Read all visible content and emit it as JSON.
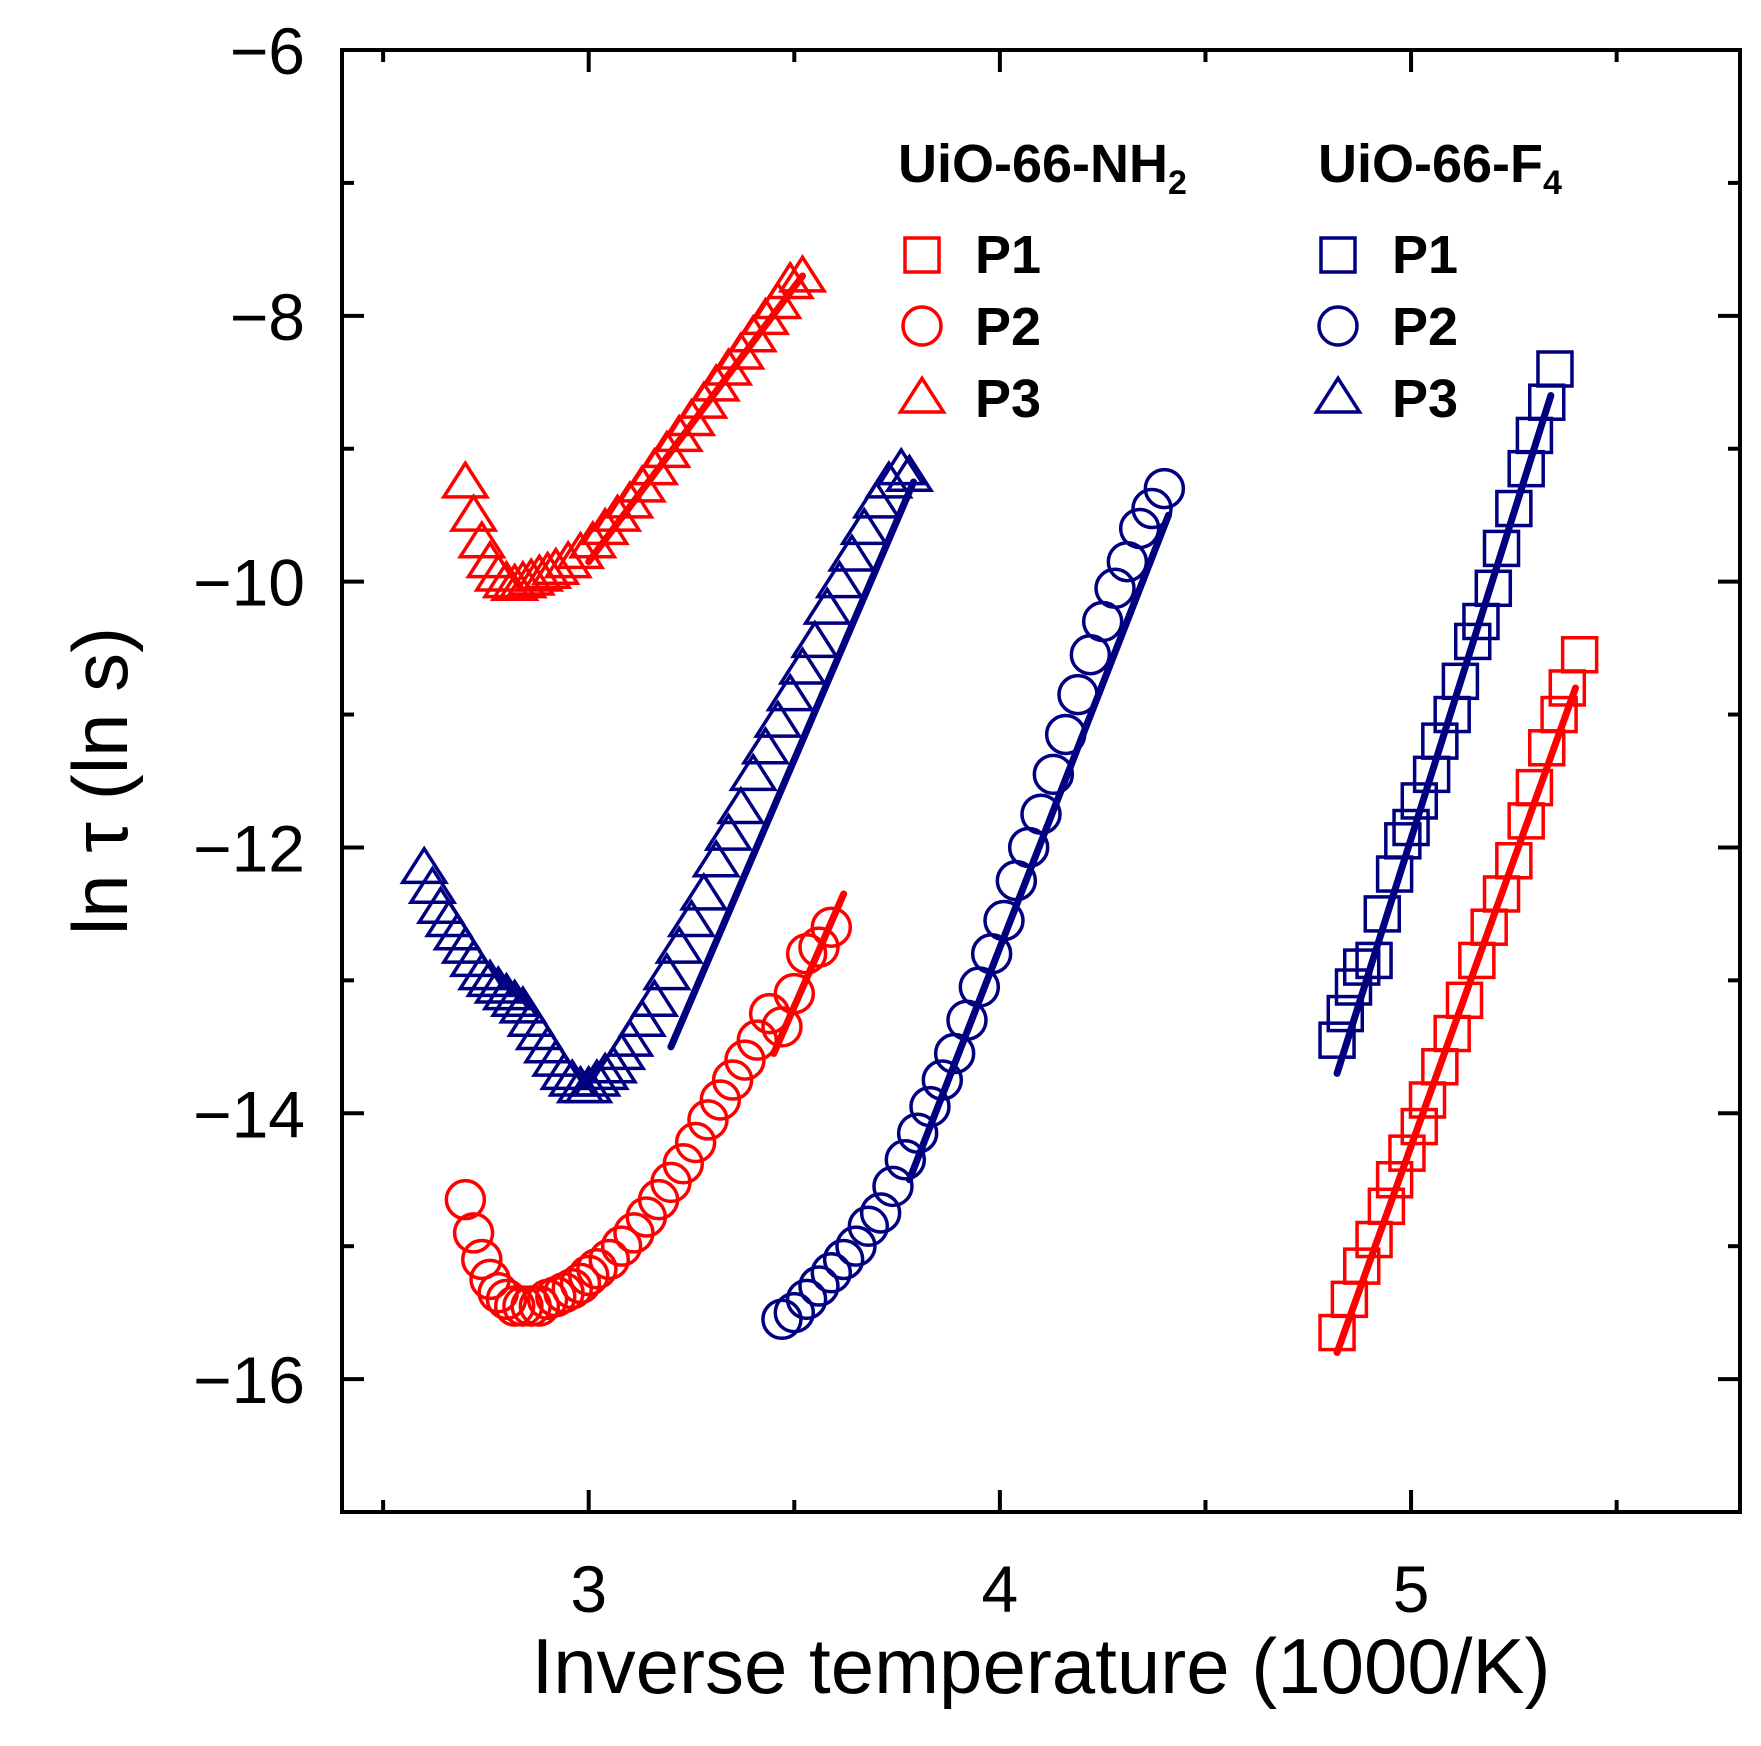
{
  "chart_data": {
    "type": "scatter",
    "title": "",
    "xlabel": "Inverse temperature (1000/K)",
    "ylabel": "ln τ (ln s)",
    "xlim": [
      2.4,
      5.8
    ],
    "ylim": [
      -17,
      -6
    ],
    "x_major_ticks": [
      3,
      4,
      5
    ],
    "x_minor_ticks": [
      2.5,
      3.5,
      4.5,
      5.5
    ],
    "y_major_ticks": [
      -6,
      -8,
      -10,
      -12,
      -14,
      -16
    ],
    "y_minor_ticks": [
      -7,
      -9,
      -11,
      -13,
      -15,
      -17
    ],
    "x_tick_labels": [
      "3",
      "4",
      "5"
    ],
    "y_tick_labels": [
      "−6",
      "−8",
      "−10",
      "−12",
      "−14",
      "−16"
    ],
    "legend": {
      "groups": [
        {
          "name": "UiO-66-NH",
          "subscript": "2",
          "color": "#ff0000",
          "entries": [
            "P1",
            "P2",
            "P3"
          ]
        },
        {
          "name": "UiO-66-F",
          "subscript": "4",
          "color": "#000080",
          "entries": [
            "P1",
            "P2",
            "P3"
          ]
        }
      ]
    },
    "series": [
      {
        "name": "UiO-66-NH2 P1",
        "color": "#ff0000",
        "marker": "square",
        "x": [
          4.82,
          4.85,
          4.88,
          4.91,
          4.94,
          4.96,
          4.99,
          5.02,
          5.04,
          5.07,
          5.1,
          5.13,
          5.16,
          5.19,
          5.22,
          5.25,
          5.28,
          5.3,
          5.33,
          5.36,
          5.38,
          5.41
        ],
        "y": [
          -15.65,
          -15.4,
          -15.15,
          -14.95,
          -14.7,
          -14.5,
          -14.3,
          -14.1,
          -13.9,
          -13.65,
          -13.4,
          -13.15,
          -12.85,
          -12.6,
          -12.35,
          -12.1,
          -11.8,
          -11.55,
          -11.25,
          -11.0,
          -10.8,
          -10.55
        ],
        "fit": {
          "x": [
            4.82,
            5.4
          ],
          "y": [
            -15.8,
            -10.8
          ]
        }
      },
      {
        "name": "UiO-66-NH2 P2",
        "color": "#ff0000",
        "marker": "circle",
        "x": [
          2.7,
          2.72,
          2.74,
          2.76,
          2.78,
          2.8,
          2.82,
          2.84,
          2.86,
          2.88,
          2.9,
          2.92,
          2.94,
          2.96,
          2.98,
          3.0,
          3.02,
          3.05,
          3.08,
          3.11,
          3.14,
          3.17,
          3.2,
          3.23,
          3.26,
          3.29,
          3.32,
          3.35,
          3.38,
          3.41,
          3.44,
          3.47,
          3.5,
          3.53,
          3.56,
          3.59
        ],
        "y": [
          -14.65,
          -14.9,
          -15.1,
          -15.25,
          -15.35,
          -15.4,
          -15.45,
          -15.45,
          -15.45,
          -15.45,
          -15.4,
          -15.38,
          -15.35,
          -15.32,
          -15.28,
          -15.22,
          -15.17,
          -15.1,
          -15.0,
          -14.9,
          -14.78,
          -14.65,
          -14.52,
          -14.38,
          -14.22,
          -14.05,
          -13.9,
          -13.75,
          -13.6,
          -13.45,
          -13.25,
          -13.35,
          -13.1,
          -12.8,
          -12.75,
          -12.6
        ],
        "fit": {
          "x": [
            3.45,
            3.62
          ],
          "y": [
            -13.55,
            -12.35
          ]
        }
      },
      {
        "name": "UiO-66-NH2 P3",
        "color": "#ff0000",
        "marker": "triangle",
        "x": [
          2.7,
          2.72,
          2.74,
          2.76,
          2.78,
          2.8,
          2.82,
          2.84,
          2.86,
          2.88,
          2.9,
          2.92,
          2.95,
          2.98,
          3.01,
          3.04,
          3.07,
          3.1,
          3.13,
          3.16,
          3.19,
          3.22,
          3.25,
          3.28,
          3.31,
          3.34,
          3.37,
          3.4,
          3.43,
          3.46,
          3.49,
          3.52
        ],
        "y": [
          -9.25,
          -9.5,
          -9.7,
          -9.85,
          -9.95,
          -10.0,
          -10.02,
          -10.0,
          -9.98,
          -9.95,
          -9.93,
          -9.9,
          -9.85,
          -9.78,
          -9.7,
          -9.6,
          -9.5,
          -9.4,
          -9.28,
          -9.15,
          -9.02,
          -8.9,
          -8.78,
          -8.65,
          -8.52,
          -8.4,
          -8.28,
          -8.15,
          -8.02,
          -7.9,
          -7.75,
          -7.7
        ],
        "fit": {
          "x": [
            3.0,
            3.52
          ],
          "y": [
            -9.85,
            -7.7
          ]
        }
      },
      {
        "name": "UiO-66-F4 P1",
        "color": "#000080",
        "marker": "square",
        "x": [
          4.82,
          4.84,
          4.86,
          4.88,
          4.91,
          4.93,
          4.96,
          4.98,
          5.0,
          5.02,
          5.05,
          5.07,
          5.1,
          5.12,
          5.15,
          5.17,
          5.2,
          5.22,
          5.25,
          5.28,
          5.3,
          5.33,
          5.35
        ],
        "y": [
          -13.45,
          -13.25,
          -13.05,
          -12.9,
          -12.85,
          -12.5,
          -12.2,
          -11.95,
          -11.85,
          -11.65,
          -11.45,
          -11.2,
          -11.0,
          -10.75,
          -10.45,
          -10.3,
          -10.05,
          -9.75,
          -9.45,
          -9.15,
          -8.9,
          -8.65,
          -8.4
        ],
        "fit": {
          "x": [
            4.82,
            5.34
          ],
          "y": [
            -13.7,
            -8.6
          ]
        }
      },
      {
        "name": "UiO-66-F4 P2",
        "color": "#000080",
        "marker": "circle",
        "x": [
          3.47,
          3.5,
          3.53,
          3.56,
          3.59,
          3.62,
          3.65,
          3.68,
          3.71,
          3.74,
          3.77,
          3.8,
          3.83,
          3.86,
          3.89,
          3.92,
          3.95,
          3.98,
          4.01,
          4.04,
          4.07,
          4.1,
          4.13,
          4.16,
          4.19,
          4.22,
          4.25,
          4.28,
          4.31,
          4.34,
          4.37,
          4.4
        ],
        "y": [
          -15.55,
          -15.5,
          -15.4,
          -15.3,
          -15.2,
          -15.1,
          -15.0,
          -14.85,
          -14.75,
          -14.55,
          -14.35,
          -14.15,
          -13.95,
          -13.75,
          -13.55,
          -13.3,
          -13.05,
          -12.8,
          -12.55,
          -12.25,
          -12.0,
          -11.75,
          -11.45,
          -11.15,
          -10.85,
          -10.55,
          -10.3,
          -10.05,
          -9.85,
          -9.6,
          -9.45,
          -9.3
        ],
        "fit": {
          "x": [
            3.78,
            4.41
          ],
          "y": [
            -14.5,
            -9.5
          ]
        }
      },
      {
        "name": "UiO-66-F4 P3",
        "color": "#000080",
        "marker": "triangle",
        "x": [
          2.6,
          2.62,
          2.64,
          2.66,
          2.68,
          2.7,
          2.72,
          2.74,
          2.76,
          2.78,
          2.8,
          2.82,
          2.84,
          2.86,
          2.88,
          2.9,
          2.92,
          2.94,
          2.96,
          2.98,
          3.0,
          3.02,
          3.04,
          3.06,
          3.08,
          3.1,
          3.13,
          3.16,
          3.19,
          3.22,
          3.25,
          3.28,
          3.31,
          3.34,
          3.37,
          3.4,
          3.43,
          3.46,
          3.49,
          3.52,
          3.55,
          3.58,
          3.61,
          3.64,
          3.67,
          3.7,
          3.73,
          3.76,
          3.78
        ],
        "y": [
          -12.15,
          -12.3,
          -12.45,
          -12.55,
          -12.65,
          -12.75,
          -12.85,
          -12.95,
          -13.0,
          -13.05,
          -13.1,
          -13.15,
          -13.2,
          -13.3,
          -13.4,
          -13.5,
          -13.6,
          -13.7,
          -13.75,
          -13.8,
          -13.8,
          -13.75,
          -13.7,
          -13.65,
          -13.55,
          -13.45,
          -13.3,
          -13.15,
          -12.95,
          -12.75,
          -12.55,
          -12.35,
          -12.1,
          -11.9,
          -11.7,
          -11.45,
          -11.25,
          -11.05,
          -10.85,
          -10.65,
          -10.45,
          -10.2,
          -10.0,
          -9.8,
          -9.6,
          -9.4,
          -9.25,
          -9.15,
          -9.2
        ],
        "fit": {
          "x": [
            3.2,
            3.79
          ],
          "y": [
            -13.5,
            -9.25
          ]
        }
      }
    ]
  }
}
